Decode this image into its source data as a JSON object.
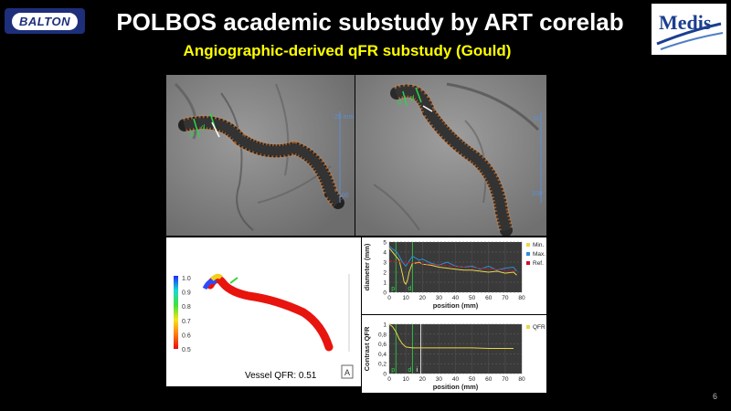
{
  "header": {
    "title": "POLBOS academic substudy by ART corelab",
    "subtitle": "Angiographic-derived qFR substudy (Gould)"
  },
  "logos": {
    "left": "BALTON",
    "right": "Medis"
  },
  "angio": {
    "left_scale_label": "25 mm",
    "left_marker_label": "100",
    "right_scale_label": "30",
    "right_marker_label": "100",
    "markers": {
      "p": "p",
      "d": "d"
    }
  },
  "render3d": {
    "colorbar_ticks": [
      "1.0",
      "0.9",
      "0.8",
      "0.7",
      "0.6",
      "0.5"
    ],
    "vessel_qfr_label": "Vessel QFR: 0.51",
    "icon": "A"
  },
  "diameter_chart": {
    "type": "line",
    "ylabel": "diameter (mm)",
    "xlabel": "position (mm)",
    "ylim": [
      0,
      5
    ],
    "xlim": [
      0,
      80
    ],
    "y_ticks": [
      "5",
      "4",
      "3",
      "2",
      "1",
      "0"
    ],
    "x_ticks": [
      "0",
      "10",
      "20",
      "30",
      "40",
      "50",
      "60",
      "70",
      "80"
    ],
    "legend": [
      "Min.",
      "Max.",
      "Ref."
    ],
    "colors": {
      "min": "#e8d84a",
      "max": "#2b8fd6",
      "ref": "#d0102a"
    },
    "series": [
      {
        "name": "Min.",
        "x": [
          0,
          2,
          4,
          6,
          8,
          9,
          10,
          11,
          12,
          14,
          16,
          18,
          20,
          25,
          30,
          35,
          40,
          45,
          50,
          55,
          60,
          65,
          70,
          75,
          77
        ],
        "y": [
          4.4,
          4.0,
          3.6,
          3.2,
          1.8,
          1.0,
          0.8,
          1.2,
          2.0,
          2.9,
          2.9,
          3.0,
          2.8,
          2.7,
          2.5,
          2.4,
          2.3,
          2.2,
          2.2,
          2.1,
          2.0,
          2.1,
          1.9,
          2.0,
          1.7
        ]
      },
      {
        "name": "Max.",
        "x": [
          0,
          2,
          4,
          6,
          8,
          10,
          12,
          14,
          16,
          18,
          20,
          25,
          30,
          35,
          40,
          45,
          50,
          55,
          60,
          65,
          70,
          75,
          77
        ],
        "y": [
          4.6,
          4.3,
          4.1,
          3.6,
          3.0,
          2.6,
          3.1,
          3.6,
          3.4,
          3.2,
          3.3,
          2.9,
          2.7,
          3.0,
          2.6,
          2.5,
          2.6,
          2.3,
          2.6,
          2.2,
          2.4,
          2.5,
          2.1
        ]
      },
      {
        "name": "Ref.",
        "x": [
          0,
          77
        ],
        "y": [
          3.1,
          2.1
        ]
      }
    ],
    "markers": [
      {
        "label": "p",
        "x": 4
      },
      {
        "label": "d",
        "x": 14
      }
    ]
  },
  "qfr_chart": {
    "type": "line",
    "ylabel": "Contrast QFR",
    "xlabel": "position (mm)",
    "ylim": [
      0,
      1
    ],
    "xlim": [
      0,
      80
    ],
    "y_ticks": [
      "1",
      "0,8",
      "0,6",
      "0,4",
      "0,2",
      "0"
    ],
    "x_ticks": [
      "0",
      "10",
      "20",
      "30",
      "40",
      "50",
      "60",
      "70",
      "80"
    ],
    "legend": [
      "QFR"
    ],
    "colors": {
      "qfr": "#e8d84a"
    },
    "series": [
      {
        "name": "QFR",
        "x": [
          0,
          2,
          4,
          6,
          8,
          10,
          12,
          14,
          16,
          18,
          20,
          30,
          40,
          50,
          60,
          70,
          75
        ],
        "y": [
          1.0,
          0.95,
          0.85,
          0.7,
          0.6,
          0.54,
          0.53,
          0.52,
          0.52,
          0.52,
          0.52,
          0.52,
          0.52,
          0.52,
          0.51,
          0.51,
          0.51
        ]
      }
    ],
    "markers": [
      {
        "label": "p",
        "x": 4
      },
      {
        "label": "d",
        "x": 14
      },
      {
        "label": "i",
        "x": 19
      }
    ]
  },
  "slide_number": "6"
}
